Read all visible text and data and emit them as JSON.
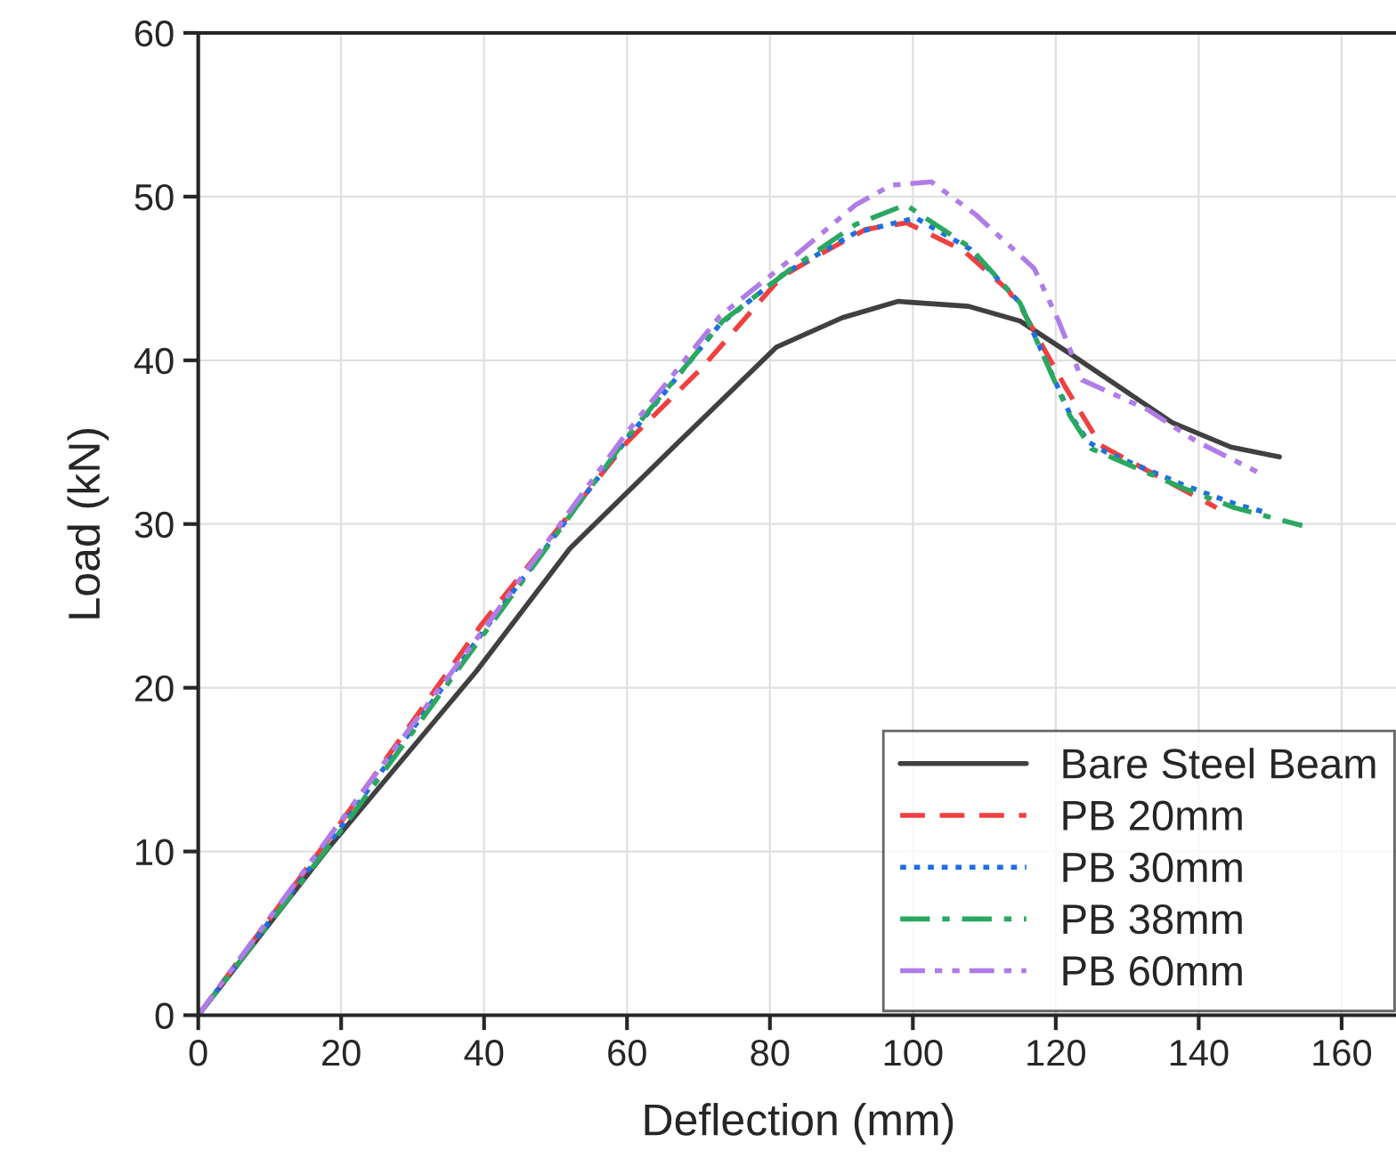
{
  "chart_data": {
    "type": "line",
    "xlabel": "Deflection (mm)",
    "ylabel": "Load (kN)",
    "xlim": [
      0,
      168
    ],
    "ylim": [
      0,
      60
    ],
    "xticks": [
      0,
      20,
      40,
      60,
      80,
      100,
      120,
      140,
      160
    ],
    "yticks": [
      0,
      10,
      20,
      30,
      40,
      50,
      60
    ],
    "grid": true,
    "legend": "bottom right",
    "series": [
      {
        "name": "Bare Steel Beam",
        "color": "#404040",
        "line_style": "solid",
        "x": [
          0,
          18,
          38.9,
          52,
          67.2,
          80.9,
          90.1,
          97.9,
          107.8,
          115,
          122,
          136.3,
          144.5,
          151.3
        ],
        "values": [
          0,
          10.1,
          21,
          28.5,
          35,
          40.8,
          42.6,
          43.6,
          43.3,
          42.4,
          40.4,
          36.2,
          34.7,
          34.1
        ]
      },
      {
        "name": "PB 20mm",
        "color": "#f04040",
        "line_style": "dashed",
        "x": [
          0,
          20,
          39.7,
          60,
          70.4,
          81.6,
          87.1,
          93.4,
          99.1,
          107.1,
          113.3,
          115.3,
          121.3,
          126.3,
          137.8,
          142.5
        ],
        "values": [
          0,
          11.8,
          23.9,
          35,
          39.5,
          45.1,
          46.5,
          48,
          48.4,
          46.7,
          44.3,
          43.1,
          38.4,
          34.8,
          32.1,
          31
        ]
      },
      {
        "name": "PB 30mm",
        "color": "#1f6fe0",
        "line_style": "dotted",
        "x": [
          0,
          20,
          40,
          60,
          73,
          82,
          92,
          100.4,
          108,
          115,
          122,
          124.6,
          127,
          137.8,
          141.5,
          145.3,
          149.5
        ],
        "values": [
          0,
          11.5,
          23.5,
          35.2,
          42.2,
          45.3,
          47.8,
          48.7,
          46.8,
          43.5,
          36.7,
          35,
          34.4,
          32.4,
          31.8,
          31.2,
          30.7
        ]
      },
      {
        "name": "PB 38mm",
        "color": "#2aa860",
        "line_style": "dashdot",
        "x": [
          0,
          20,
          40,
          60,
          73.4,
          83,
          92,
          99,
          108,
          115,
          122,
          125,
          137.8,
          145,
          154.5
        ],
        "values": [
          0,
          11.3,
          23.3,
          35.3,
          42.4,
          45.6,
          48.3,
          49.5,
          46.9,
          43.5,
          36.6,
          34.6,
          32.2,
          31,
          29.9
        ]
      },
      {
        "name": "PB 60mm",
        "color": "#b07ce8",
        "line_style": "dashdotdot",
        "x": [
          0,
          20,
          40,
          60,
          73,
          83,
          92,
          97,
          102.6,
          108.8,
          117,
          120.4,
          123.7,
          132.8,
          139.5,
          149
        ],
        "values": [
          0,
          11.9,
          23.6,
          35.6,
          42.7,
          46.2,
          49.5,
          50.7,
          50.9,
          48.9,
          45.6,
          42.4,
          38.8,
          37,
          35.1,
          33
        ]
      }
    ]
  }
}
